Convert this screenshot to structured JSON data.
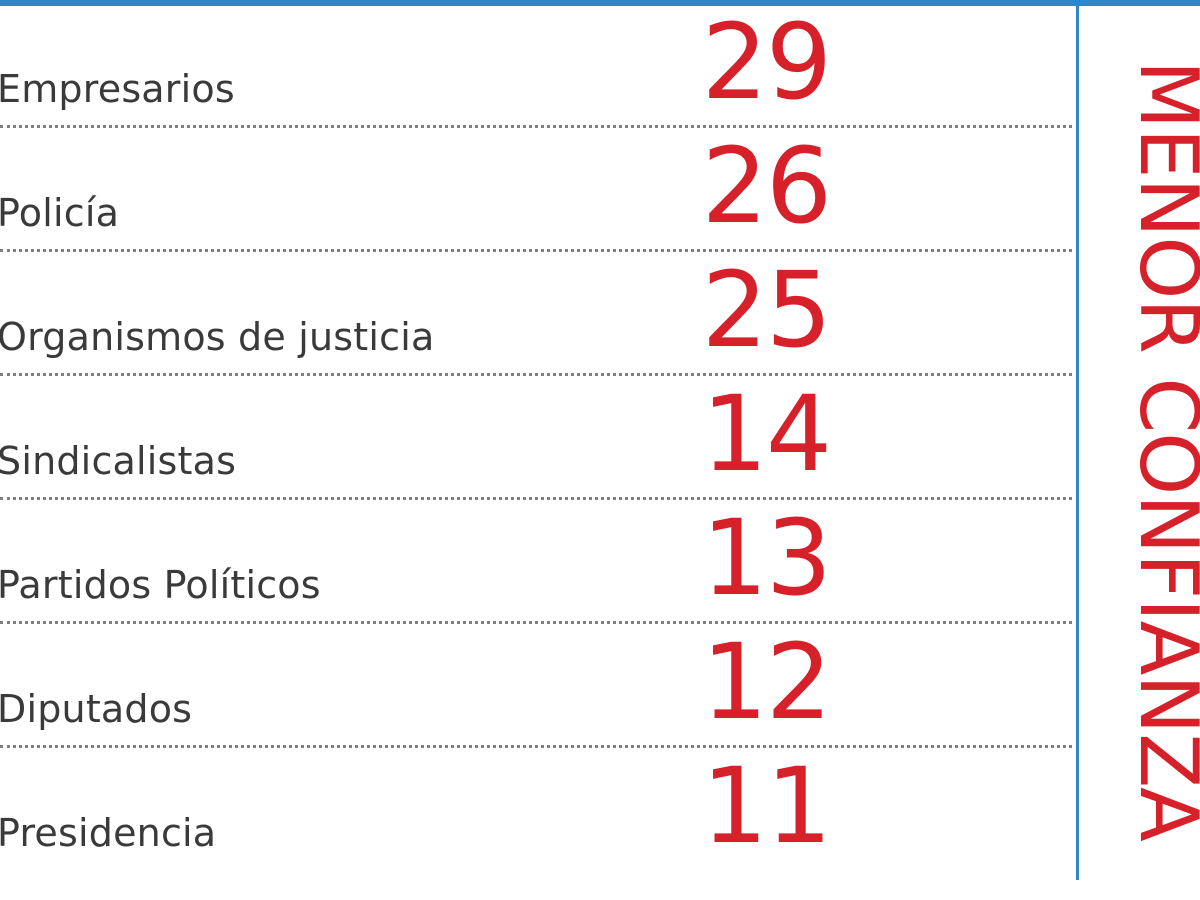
{
  "side_title": "MENOR CONFIANZA",
  "chart_data": {
    "type": "table",
    "categories": [
      "Empresarios",
      "Policía",
      "Organismos de justicia",
      "Sindicalistas",
      "Partidos Políticos",
      "Diputados",
      "Presidencia"
    ],
    "values": [
      29,
      26,
      25,
      14,
      13,
      12,
      11
    ]
  },
  "colors": {
    "accent_red": "#d6212a",
    "rule_blue": "#2f86c9",
    "label_gray": "#3a3a3a",
    "separator_gray": "#7f7f7f"
  }
}
